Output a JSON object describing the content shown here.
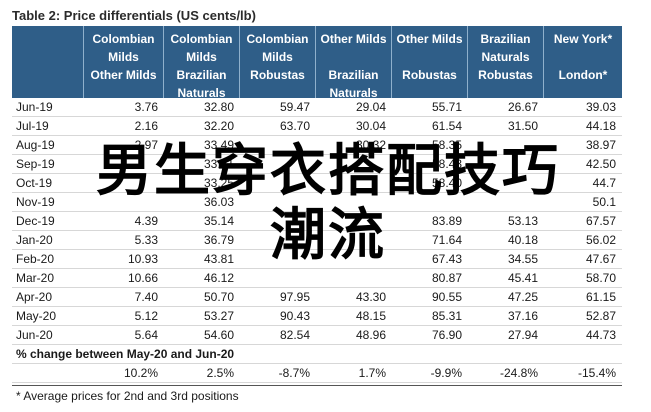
{
  "table": {
    "title": "Table 2: Price differentials (US cents/lb)",
    "headers": [
      {
        "lines": [
          ""
        ]
      },
      {
        "lines": [
          "Colombian",
          "Milds",
          "Other Milds"
        ]
      },
      {
        "lines": [
          "Colombian",
          "Milds",
          "Brazilian",
          "Naturals"
        ]
      },
      {
        "lines": [
          "Colombian",
          "Milds",
          "Robustas"
        ]
      },
      {
        "lines": [
          "Other Milds",
          "",
          "Brazilian",
          "Naturals"
        ]
      },
      {
        "lines": [
          "Other Milds",
          "",
          "Robustas"
        ]
      },
      {
        "lines": [
          "Brazilian",
          "Naturals",
          "Robustas"
        ]
      },
      {
        "lines": [
          "New York*",
          "",
          "London*"
        ]
      }
    ],
    "rows": [
      [
        "Jun-19",
        "3.76",
        "32.80",
        "59.47",
        "29.04",
        "55.71",
        "26.67",
        "39.03"
      ],
      [
        "Jul-19",
        "2.16",
        "32.20",
        "63.70",
        "30.04",
        "61.54",
        "31.50",
        "44.18"
      ],
      [
        "Aug-19",
        "2.97",
        "33.49",
        "",
        "30.32",
        "58.35",
        "",
        "38.97"
      ],
      [
        "Sep-19",
        "",
        "33.81",
        "",
        "",
        "58.43",
        "",
        "42.50"
      ],
      [
        "Oct-19",
        "",
        "33.25",
        "",
        "",
        "58.40",
        "",
        "44.7"
      ],
      [
        "Nov-19",
        "",
        "36.03",
        "",
        "",
        "",
        "",
        "50.1"
      ],
      [
        "Dec-19",
        "4.39",
        "35.14",
        "",
        "",
        "83.89",
        "53.13",
        "67.57"
      ],
      [
        "Jan-20",
        "5.33",
        "36.79",
        "",
        "",
        "71.64",
        "40.18",
        "56.02"
      ],
      [
        "Feb-20",
        "10.93",
        "43.81",
        "",
        "",
        "67.43",
        "34.55",
        "47.67"
      ],
      [
        "Mar-20",
        "10.66",
        "46.12",
        "",
        "",
        "80.87",
        "45.41",
        "58.70"
      ],
      [
        "Apr-20",
        "7.40",
        "50.70",
        "97.95",
        "43.30",
        "90.55",
        "47.25",
        "61.15"
      ],
      [
        "May-20",
        "5.12",
        "53.27",
        "90.43",
        "48.15",
        "85.31",
        "37.16",
        "52.87"
      ],
      [
        "Jun-20",
        "5.64",
        "54.60",
        "82.54",
        "48.96",
        "76.90",
        "27.94",
        "44.73"
      ]
    ],
    "pct_label": "% change between May-20 and Jun-20",
    "pct_values": [
      "",
      "10.2%",
      "2.5%",
      "-8.7%",
      "1.7%",
      "-9.9%",
      "-24.8%",
      "-15.4%"
    ],
    "footnote": "* Average prices for 2nd and 3rd positions"
  },
  "watermark": {
    "line1": "男生穿衣搭配技巧",
    "line2": "潮流"
  }
}
